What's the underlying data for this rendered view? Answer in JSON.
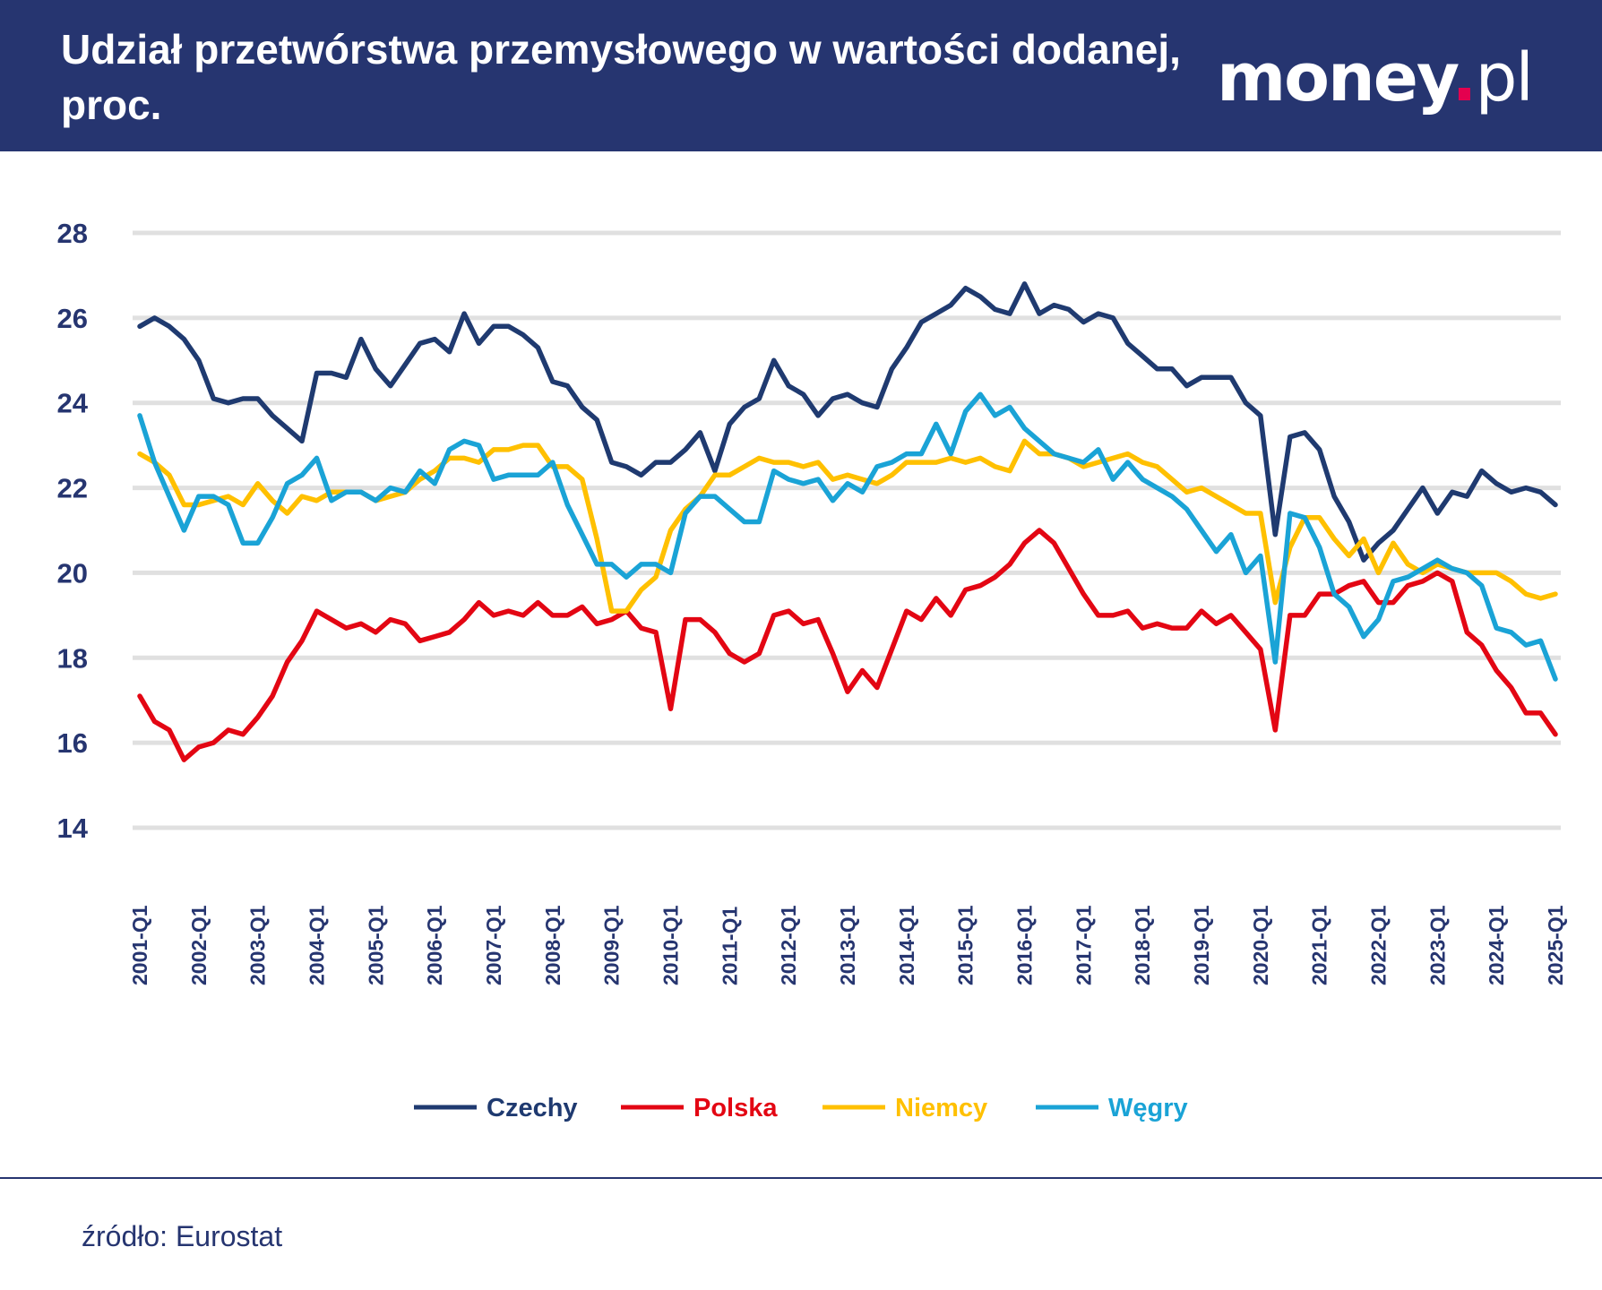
{
  "header": {
    "title": "Udział przetwórstwa przemysłowego w wartości dodanej, proc.",
    "logo": "money.pl"
  },
  "footer": {
    "source": "źródło: Eurostat"
  },
  "colors": {
    "header_bg": "#263570",
    "grid": "#e0e0e0",
    "axis_text": "#263570"
  },
  "chart_data": {
    "type": "line",
    "title": "Udział przetwórstwa przemysłowego w wartości dodanej, proc.",
    "ylim": [
      14,
      28
    ],
    "yticks": [
      14,
      16,
      18,
      20,
      22,
      24,
      26,
      28
    ],
    "grid": true,
    "legend_position": "bottom",
    "x_start": "2001-Q1",
    "x_tick_labels": [
      "2001-Q1",
      "2002-Q1",
      "2003-Q1",
      "2004-Q1",
      "2005-Q1",
      "2006-Q1",
      "2007-Q1",
      "2008-Q1",
      "2009-Q1",
      "2010-Q1",
      "2011-Q1",
      "2012-Q1",
      "2013-Q1",
      "2014-Q1",
      "2015-Q1",
      "2016-Q1",
      "2017-Q1",
      "2018-Q1",
      "2019-Q1",
      "2020-Q1",
      "2021-Q1",
      "2022-Q1",
      "2023-Q1",
      "2024-Q1",
      "2025-Q1"
    ],
    "series": [
      {
        "name": "Czechy",
        "color": "#1f3a70",
        "values": [
          25.8,
          26.0,
          25.8,
          25.5,
          25.0,
          24.1,
          24.0,
          24.1,
          24.1,
          23.7,
          23.4,
          23.1,
          24.7,
          24.7,
          24.6,
          25.5,
          24.8,
          24.4,
          24.9,
          25.4,
          25.5,
          25.2,
          26.1,
          25.4,
          25.8,
          25.8,
          25.6,
          25.3,
          24.5,
          24.4,
          23.9,
          23.6,
          22.6,
          22.5,
          22.3,
          22.6,
          22.6,
          22.9,
          23.3,
          22.4,
          23.5,
          23.9,
          24.1,
          25.0,
          24.4,
          24.2,
          23.7,
          24.1,
          24.2,
          24.0,
          23.9,
          24.8,
          25.3,
          25.9,
          26.1,
          26.3,
          26.7,
          26.5,
          26.2,
          26.1,
          26.8,
          26.1,
          26.3,
          26.2,
          25.9,
          26.1,
          26.0,
          25.4,
          25.1,
          24.8,
          24.8,
          24.4,
          24.6,
          24.6,
          24.6,
          24.0,
          23.7,
          20.9,
          23.2,
          23.3,
          22.9,
          21.8,
          21.2,
          20.3,
          20.7,
          21.0,
          21.5,
          22.0,
          21.4,
          21.9,
          21.8,
          22.4,
          22.1,
          21.9,
          22.0,
          21.9,
          21.6
        ]
      },
      {
        "name": "Polska",
        "color": "#e30613",
        "values": [
          17.1,
          16.5,
          16.3,
          15.6,
          15.9,
          16.0,
          16.3,
          16.2,
          16.6,
          17.1,
          17.9,
          18.4,
          19.1,
          18.9,
          18.7,
          18.8,
          18.6,
          18.9,
          18.8,
          18.4,
          18.5,
          18.6,
          18.9,
          19.3,
          19.0,
          19.1,
          19.0,
          19.3,
          19.0,
          19.0,
          19.2,
          18.8,
          18.9,
          19.1,
          18.7,
          18.6,
          16.8,
          18.9,
          18.9,
          18.6,
          18.1,
          17.9,
          18.1,
          19.0,
          19.1,
          18.8,
          18.9,
          18.1,
          17.2,
          17.7,
          17.3,
          18.2,
          19.1,
          18.9,
          19.4,
          19.0,
          19.6,
          19.7,
          19.9,
          20.2,
          20.7,
          21.0,
          20.7,
          20.1,
          19.5,
          19.0,
          19.0,
          19.1,
          18.7,
          18.8,
          18.7,
          18.7,
          19.1,
          18.8,
          19.0,
          18.6,
          18.2,
          16.3,
          19.0,
          19.0,
          19.5,
          19.5,
          19.7,
          19.8,
          19.3,
          19.3,
          19.7,
          19.8,
          20.0,
          19.8,
          18.6,
          18.3,
          17.7,
          17.3,
          16.7,
          16.7,
          16.2
        ]
      },
      {
        "name": "Niemcy",
        "color": "#ffc000",
        "values": [
          22.8,
          22.6,
          22.3,
          21.6,
          21.6,
          21.7,
          21.8,
          21.6,
          22.1,
          21.7,
          21.4,
          21.8,
          21.7,
          21.9,
          21.9,
          21.9,
          21.7,
          21.8,
          21.9,
          22.2,
          22.4,
          22.7,
          22.7,
          22.6,
          22.9,
          22.9,
          23.0,
          23.0,
          22.5,
          22.5,
          22.2,
          20.8,
          19.1,
          19.1,
          19.6,
          19.9,
          21.0,
          21.5,
          21.8,
          22.3,
          22.3,
          22.5,
          22.7,
          22.6,
          22.6,
          22.5,
          22.6,
          22.2,
          22.3,
          22.2,
          22.1,
          22.3,
          22.6,
          22.6,
          22.6,
          22.7,
          22.6,
          22.7,
          22.5,
          22.4,
          23.1,
          22.8,
          22.8,
          22.7,
          22.5,
          22.6,
          22.7,
          22.8,
          22.6,
          22.5,
          22.2,
          21.9,
          22.0,
          21.8,
          21.6,
          21.4,
          21.4,
          19.3,
          20.6,
          21.3,
          21.3,
          20.8,
          20.4,
          20.8,
          20.0,
          20.7,
          20.2,
          20.0,
          20.2,
          20.1,
          20.0,
          20.0,
          20.0,
          19.8,
          19.5,
          19.4,
          19.5
        ]
      },
      {
        "name": "Węgry",
        "color": "#1aa3d6",
        "values": [
          23.7,
          22.6,
          21.8,
          21.0,
          21.8,
          21.8,
          21.6,
          20.7,
          20.7,
          21.3,
          22.1,
          22.3,
          22.7,
          21.7,
          21.9,
          21.9,
          21.7,
          22.0,
          21.9,
          22.4,
          22.1,
          22.9,
          23.1,
          23.0,
          22.2,
          22.3,
          22.3,
          22.3,
          22.6,
          21.6,
          20.9,
          20.2,
          20.2,
          19.9,
          20.2,
          20.2,
          20.0,
          21.4,
          21.8,
          21.8,
          21.5,
          21.2,
          21.2,
          22.4,
          22.2,
          22.1,
          22.2,
          21.7,
          22.1,
          21.9,
          22.5,
          22.6,
          22.8,
          22.8,
          23.5,
          22.8,
          23.8,
          24.2,
          23.7,
          23.9,
          23.4,
          23.1,
          22.8,
          22.7,
          22.6,
          22.9,
          22.2,
          22.6,
          22.2,
          22.0,
          21.8,
          21.5,
          21.0,
          20.5,
          20.9,
          20.0,
          20.4,
          17.9,
          21.4,
          21.3,
          20.6,
          19.5,
          19.2,
          18.5,
          18.9,
          19.8,
          19.9,
          20.1,
          20.3,
          20.1,
          20.0,
          19.7,
          18.7,
          18.6,
          18.3,
          18.4,
          17.5
        ]
      }
    ]
  }
}
